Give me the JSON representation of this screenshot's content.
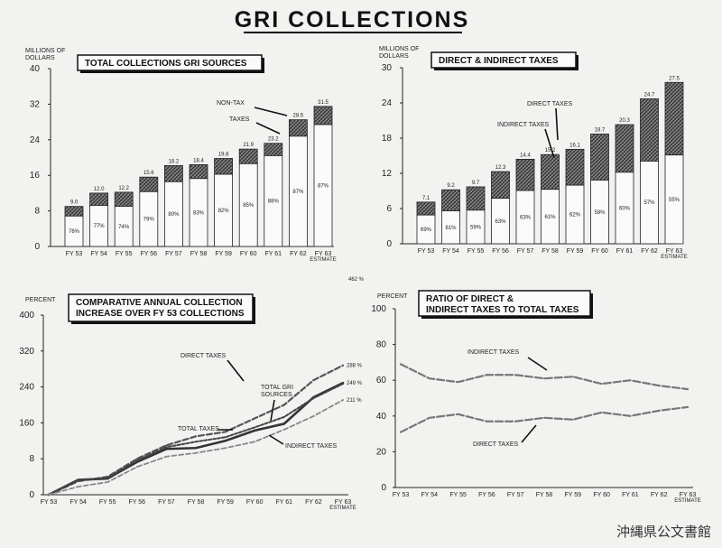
{
  "title": "GRI COLLECTIONS",
  "archive_mark": "沖縄県公文書館",
  "chart_data": [
    {
      "id": "total",
      "type": "bar",
      "stacked": true,
      "title": "TOTAL COLLECTIONS GRI SOURCES",
      "ylabel": "MILLIONS OF DOLLARS",
      "ylim": [
        0,
        40
      ],
      "yticks": [
        "0",
        "8",
        "16",
        "24",
        "32",
        "40"
      ],
      "categories": [
        "FY 53",
        "FY 54",
        "FY 55",
        "FY 56",
        "FY 57",
        "FY 58",
        "FY 59",
        "FY 60",
        "FY 61",
        "FY 62",
        "FY 63"
      ],
      "category_sub": [
        "",
        "",
        "",
        "",
        "",
        "",
        "",
        "",
        "",
        "",
        "ESTIMATE"
      ],
      "totals": [
        9.0,
        12.0,
        12.2,
        15.6,
        18.2,
        18.4,
        19.8,
        21.9,
        23.2,
        28.5,
        31.5
      ],
      "total_labels": [
        "9.0",
        "12.0",
        "12.2",
        "15.6",
        "18.2",
        "18.4",
        "19.8",
        "21.9",
        "23.2",
        "28.5",
        "31.5"
      ],
      "tax_pct": [
        76,
        77,
        74,
        79,
        80,
        83,
        82,
        85,
        88,
        87,
        87
      ],
      "tax_pct_labels": [
        "76%",
        "77%",
        "74%",
        "79%",
        "80%",
        "83%",
        "82%",
        "85%",
        "88%",
        "87%",
        "87%"
      ],
      "annotations": [
        "NON-TAX",
        "TAXES"
      ]
    },
    {
      "id": "direct_indirect",
      "type": "bar",
      "stacked": true,
      "title": "DIRECT & INDIRECT TAXES",
      "ylabel": "MILLIONS OF DOLLARS",
      "ylim": [
        0,
        30
      ],
      "yticks": [
        "0",
        "6",
        "12",
        "18",
        "24",
        "30"
      ],
      "categories": [
        "FY 53",
        "FY 54",
        "FY 55",
        "FY 56",
        "FY 57",
        "FY 58",
        "FY 59",
        "FY 60",
        "FY 61",
        "FY 62",
        "FY 63"
      ],
      "category_sub": [
        "",
        "",
        "",
        "",
        "",
        "",
        "",
        "",
        "",
        "",
        "ESTIMATE"
      ],
      "totals": [
        7.1,
        9.2,
        9.7,
        12.3,
        14.4,
        15.2,
        16.1,
        18.7,
        20.3,
        24.7,
        27.5
      ],
      "total_labels": [
        "7.1",
        "9.2",
        "9.7",
        "12.3",
        "14.4",
        "15.2",
        "16.1",
        "18.7",
        "20.3",
        "24.7",
        "27.5"
      ],
      "indirect_pct": [
        69,
        61,
        59,
        63,
        63,
        61,
        62,
        58,
        60,
        57,
        55
      ],
      "indirect_pct_labels": [
        "69%",
        "61%",
        "59%",
        "63%",
        "63%",
        "61%",
        "62%",
        "58%",
        "60%",
        "57%",
        "55%"
      ],
      "annotations": [
        "DIRECT TAXES",
        "INDIRECT TAXES"
      ]
    },
    {
      "id": "increase",
      "type": "line",
      "title": "COMPARATIVE ANNUAL COLLECTION INCREASE OVER FY 53 COLLECTIONS",
      "title_lines": [
        "COMPARATIVE ANNUAL COLLECTION",
        "INCREASE OVER FY 53 COLLECTIONS"
      ],
      "ylabel": "PERCENT",
      "ylim": [
        0,
        400
      ],
      "yticks": [
        "0",
        "8",
        "160",
        "240",
        "320",
        "400"
      ],
      "categories": [
        "FY 53",
        "FY 54",
        "FY 55",
        "FY 56",
        "FY 57",
        "FY 58",
        "FY 59",
        "FY 60",
        "FY 61",
        "FY 62",
        "FY 63"
      ],
      "category_sub": [
        "",
        "",
        "",
        "",
        "",
        "",
        "",
        "",
        "",
        "",
        "ESTIMATE"
      ],
      "series": [
        {
          "name": "DIRECT TAXES",
          "values": [
            0,
            30,
            40,
            80,
            110,
            130,
            140,
            170,
            200,
            255,
            288
          ],
          "end_label": "288 %"
        },
        {
          "name": "TOTAL GRI SOURCES",
          "values": [
            0,
            33,
            36,
            73,
            102,
            104,
            120,
            143,
            158,
            217,
            249
          ],
          "end_label": "249 %"
        },
        {
          "name": "TOTAL TAXES",
          "values": [
            0,
            32,
            38,
            76,
            106,
            118,
            128,
            150,
            173,
            215,
            247
          ],
          "end_label": ""
        },
        {
          "name": "INDIRECT TAXES",
          "values": [
            0,
            18,
            28,
            62,
            85,
            93,
            104,
            118,
            145,
            175,
            211
          ],
          "end_label": "211 %"
        }
      ],
      "offscale_label": "462 %"
    },
    {
      "id": "ratio",
      "type": "line",
      "title": "RATIO OF DIRECT & INDIRECT TAXES TO TOTAL TAXES",
      "title_lines": [
        "RATIO OF DIRECT &",
        "INDIRECT TAXES TO TOTAL TAXES"
      ],
      "ylabel": "PERCENT",
      "ylim": [
        0,
        100
      ],
      "yticks": [
        "0",
        "20",
        "40",
        "60",
        "80",
        "100"
      ],
      "categories": [
        "FY 53",
        "FY 54",
        "FY 55",
        "FY 56",
        "FY 57",
        "FY 58",
        "FY 59",
        "FY 60",
        "FY 61",
        "FY 62",
        "FY 63"
      ],
      "category_sub": [
        "",
        "",
        "",
        "",
        "",
        "",
        "",
        "",
        "",
        "",
        "ESTIMATE"
      ],
      "series": [
        {
          "name": "INDIRECT TAXES",
          "values": [
            69,
            61,
            59,
            63,
            63,
            61,
            62,
            58,
            60,
            57,
            55
          ]
        },
        {
          "name": "DIRECT TAXES",
          "values": [
            31,
            39,
            41,
            37,
            37,
            39,
            38,
            42,
            40,
            43,
            45
          ]
        }
      ]
    }
  ]
}
